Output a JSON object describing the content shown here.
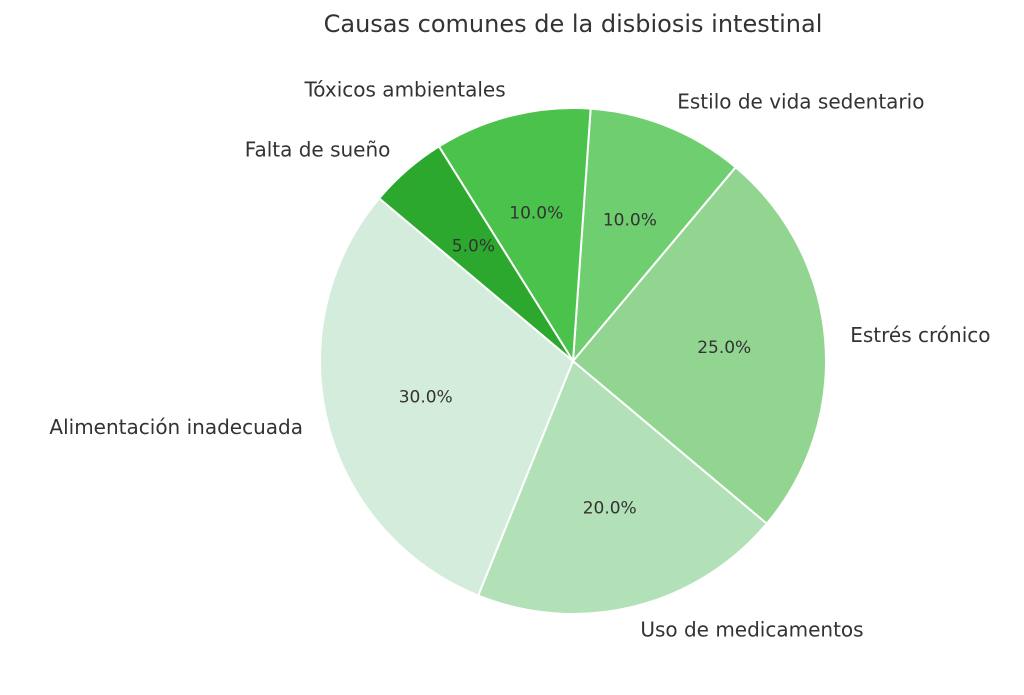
{
  "chart_data": {
    "type": "pie",
    "title": "Causas comunes de la disbiosis intestinal",
    "categories": [
      "Alimentación inadecuada",
      "Uso de medicamentos",
      "Estrés crónico",
      "Estilo de vida sedentario",
      "Tóxicos ambientales",
      "Falta de sueño"
    ],
    "values": [
      30,
      20,
      25,
      10,
      10,
      5
    ],
    "value_labels": [
      "30.0%",
      "20.0%",
      "25.0%",
      "10.0%",
      "10.0%",
      "5.0%"
    ],
    "colors": [
      "#d4ecdc",
      "#b2e1b7",
      "#92d591",
      "#6fce6f",
      "#4bc24b",
      "#2ca82f"
    ],
    "start_angle": 140
  }
}
